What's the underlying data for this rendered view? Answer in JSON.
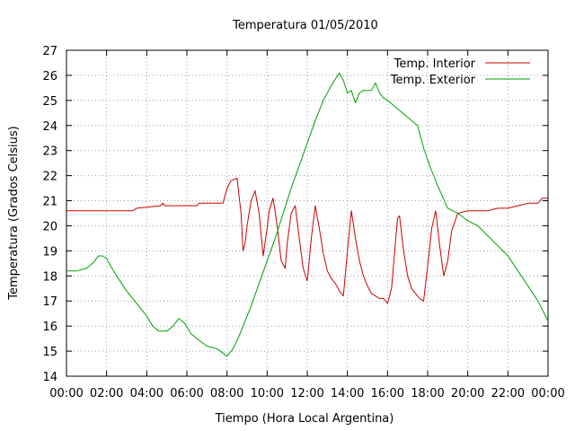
{
  "chart_data": {
    "type": "line",
    "title": "Temperatura 01/05/2010",
    "xlabel": "Tiempo (Hora Local Argentina)",
    "ylabel": "Temperatura (Grados Celsius)",
    "xlim": [
      0,
      24
    ],
    "ylim": [
      14,
      27
    ],
    "xticks": [
      {
        "x": 0,
        "label": "00:00"
      },
      {
        "x": 2,
        "label": "02:00"
      },
      {
        "x": 4,
        "label": "04:00"
      },
      {
        "x": 6,
        "label": "06:00"
      },
      {
        "x": 8,
        "label": "08:00"
      },
      {
        "x": 10,
        "label": "10:00"
      },
      {
        "x": 12,
        "label": "12:00"
      },
      {
        "x": 14,
        "label": "14:00"
      },
      {
        "x": 16,
        "label": "16:00"
      },
      {
        "x": 18,
        "label": "18:00"
      },
      {
        "x": 20,
        "label": "20:00"
      },
      {
        "x": 22,
        "label": "22:00"
      },
      {
        "x": 24,
        "label": "00:00"
      }
    ],
    "yticks": [
      14,
      15,
      16,
      17,
      18,
      19,
      20,
      21,
      22,
      23,
      24,
      25,
      26,
      27
    ],
    "grid": true,
    "legend_position": "top-right",
    "series": [
      {
        "name": "Temp. Interior",
        "color": "#cc0000",
        "x": [
          0,
          3.3,
          3.5,
          4.7,
          4.8,
          4.9,
          5.0,
          6.5,
          6.6,
          7.8,
          8.0,
          8.2,
          8.5,
          8.7,
          8.8,
          8.9,
          9.0,
          9.2,
          9.4,
          9.6,
          9.8,
          10.0,
          10.1,
          10.3,
          10.5,
          10.7,
          10.9,
          11.0,
          11.2,
          11.4,
          11.6,
          11.8,
          12.0,
          12.2,
          12.4,
          12.6,
          12.8,
          13.0,
          13.2,
          13.4,
          13.6,
          13.8,
          14.0,
          14.2,
          14.4,
          14.6,
          14.8,
          15.0,
          15.2,
          15.4,
          15.6,
          15.8,
          16.0,
          16.2,
          16.4,
          16.5,
          16.6,
          16.8,
          17.0,
          17.2,
          17.4,
          17.6,
          17.8,
          18.0,
          18.2,
          18.4,
          18.6,
          18.8,
          19.0,
          19.2,
          19.5,
          20.0,
          20.5,
          21.0,
          21.5,
          22.0,
          22.5,
          23.0,
          23.5,
          23.7,
          24.0
        ],
        "values": [
          20.6,
          20.6,
          20.7,
          20.8,
          20.9,
          20.8,
          20.8,
          20.8,
          20.9,
          20.9,
          21.5,
          21.8,
          21.9,
          20.5,
          19.0,
          19.3,
          20.0,
          21.0,
          21.4,
          20.5,
          18.8,
          19.9,
          20.6,
          21.1,
          20.0,
          18.6,
          18.3,
          19.3,
          20.5,
          20.8,
          19.5,
          18.3,
          17.8,
          19.5,
          20.8,
          19.9,
          18.9,
          18.2,
          17.9,
          17.7,
          17.4,
          17.2,
          19.0,
          20.6,
          19.5,
          18.6,
          18.0,
          17.6,
          17.3,
          17.2,
          17.1,
          17.1,
          16.9,
          17.5,
          19.4,
          20.3,
          20.4,
          19.0,
          18.0,
          17.5,
          17.3,
          17.1,
          17.0,
          18.4,
          19.9,
          20.6,
          19.2,
          18.0,
          18.6,
          19.8,
          20.5,
          20.6,
          20.6,
          20.6,
          20.7,
          20.7,
          20.8,
          20.9,
          20.9,
          21.1,
          21.1
        ]
      },
      {
        "name": "Temp. Exterior",
        "color": "#00a000",
        "x": [
          0,
          0.5,
          1.0,
          1.3,
          1.6,
          1.8,
          2.0,
          2.2,
          2.5,
          3.0,
          3.5,
          4.0,
          4.3,
          4.6,
          5.0,
          5.3,
          5.6,
          5.9,
          6.2,
          6.5,
          7.0,
          7.5,
          8.0,
          8.3,
          8.6,
          8.9,
          9.2,
          9.6,
          10.0,
          10.4,
          10.8,
          11.2,
          11.6,
          12.0,
          12.4,
          12.8,
          13.2,
          13.6,
          13.8,
          14.0,
          14.2,
          14.4,
          14.6,
          14.8,
          15.0,
          15.2,
          15.4,
          15.6,
          15.8,
          16.0,
          16.3,
          16.6,
          16.9,
          17.2,
          17.5,
          17.8,
          18.1,
          18.5,
          19.0,
          19.5,
          20.0,
          20.5,
          21.0,
          21.5,
          22.0,
          22.5,
          23.0,
          23.5,
          24.0
        ],
        "values": [
          18.2,
          18.2,
          18.3,
          18.5,
          18.8,
          18.8,
          18.7,
          18.4,
          18.0,
          17.4,
          16.9,
          16.4,
          16.0,
          15.8,
          15.8,
          16.0,
          16.3,
          16.1,
          15.7,
          15.5,
          15.2,
          15.1,
          14.8,
          15.1,
          15.6,
          16.2,
          16.8,
          17.7,
          18.6,
          19.5,
          20.5,
          21.5,
          22.4,
          23.3,
          24.2,
          25.0,
          25.6,
          26.1,
          25.8,
          25.3,
          25.4,
          24.9,
          25.3,
          25.4,
          25.4,
          25.4,
          25.7,
          25.3,
          25.1,
          25.0,
          24.8,
          24.6,
          24.4,
          24.2,
          24.0,
          23.1,
          22.4,
          21.6,
          20.7,
          20.5,
          20.2,
          20.0,
          19.6,
          19.2,
          18.8,
          18.2,
          17.6,
          17.0,
          16.2
        ]
      }
    ]
  }
}
